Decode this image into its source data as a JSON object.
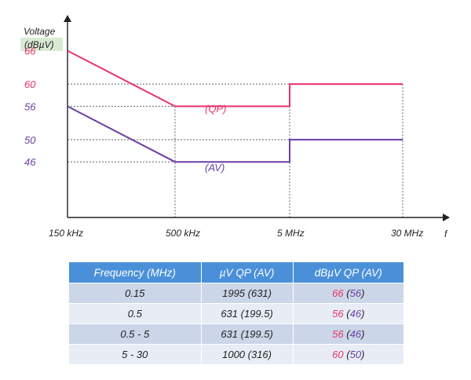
{
  "colors": {
    "qp": "#e8336a",
    "av": "#6a3fa3",
    "axis": "#222222",
    "grid": "#666666",
    "ylabel_bg": "#d9ead3",
    "table_header": "#4a90d9"
  },
  "chart_data": {
    "type": "line",
    "title": "",
    "ylabel_line1": "Voltage",
    "ylabel_line2": "(dBµV)",
    "xlabel": "f",
    "x_ticks": [
      "150 kHz",
      "500 kHz",
      "5 MHz",
      "30 MHz"
    ],
    "y_ticks": [
      {
        "value": 66,
        "label": "66",
        "series": "qp"
      },
      {
        "value": 60,
        "label": "60",
        "series": "qp"
      },
      {
        "value": 56,
        "label": "56",
        "series": "av"
      },
      {
        "value": 50,
        "label": "50",
        "series": "av"
      },
      {
        "value": 46,
        "label": "46",
        "series": "av"
      }
    ],
    "ylim": [
      36,
      70
    ],
    "series": [
      {
        "name": "QP",
        "label": "(QP)",
        "points": [
          {
            "x": "150 kHz",
            "y": 66
          },
          {
            "x": "500 kHz",
            "y": 56
          },
          {
            "x": "5 MHz",
            "y": 56
          },
          {
            "x": "5 MHz",
            "y": 60
          },
          {
            "x": "30 MHz",
            "y": 60
          }
        ]
      },
      {
        "name": "AV",
        "label": "(AV)",
        "points": [
          {
            "x": "150 kHz",
            "y": 56
          },
          {
            "x": "500 kHz",
            "y": 46
          },
          {
            "x": "5 MHz",
            "y": 46
          },
          {
            "x": "5 MHz",
            "y": 50
          },
          {
            "x": "30 MHz",
            "y": 50
          }
        ]
      }
    ]
  },
  "table": {
    "headers": [
      "Frequency  (MHz)",
      "µV QP (AV)",
      "dBµV QP (AV)"
    ],
    "rows": [
      {
        "freq": "0.15",
        "uv": "1995 (631)",
        "qp": "66",
        "av": "56"
      },
      {
        "freq": "0.5",
        "uv": "631 (199.5)",
        "qp": "56",
        "av": "46"
      },
      {
        "freq": "0.5 - 5",
        "uv": "631 (199.5)",
        "qp": "56",
        "av": "46"
      },
      {
        "freq": "5 - 30",
        "uv": "1000 (316)",
        "qp": "60",
        "av": "50"
      }
    ]
  }
}
